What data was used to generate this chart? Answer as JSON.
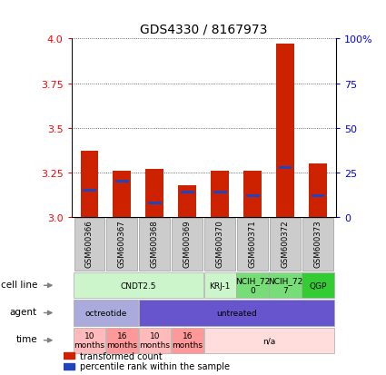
{
  "title": "GDS4330 / 8167973",
  "samples": [
    "GSM600366",
    "GSM600367",
    "GSM600368",
    "GSM600369",
    "GSM600370",
    "GSM600371",
    "GSM600372",
    "GSM600373"
  ],
  "transformed_counts": [
    3.37,
    3.26,
    3.27,
    3.18,
    3.26,
    3.26,
    3.97,
    3.3
  ],
  "percentile_ranks": [
    3.15,
    3.2,
    3.08,
    3.14,
    3.14,
    3.12,
    3.28,
    3.12
  ],
  "bar_bottom": 3.0,
  "ylim": [
    3.0,
    4.0
  ],
  "yticks_left": [
    3.0,
    3.25,
    3.5,
    3.75,
    4.0
  ],
  "yticks_right_vals": [
    0,
    25,
    50,
    75,
    100
  ],
  "yticks_right_labels": [
    "0",
    "25",
    "50",
    "75",
    "100%"
  ],
  "cell_line_groups": [
    {
      "label": "CNDT2.5",
      "start": 0,
      "end": 4,
      "color": "#ccf5cc"
    },
    {
      "label": "KRJ-1",
      "start": 4,
      "end": 5,
      "color": "#ccf5cc"
    },
    {
      "label": "NCIH_72\n0",
      "start": 5,
      "end": 6,
      "color": "#77dd77"
    },
    {
      "label": "NCIH_72\n7",
      "start": 6,
      "end": 7,
      "color": "#77dd77"
    },
    {
      "label": "QGP",
      "start": 7,
      "end": 8,
      "color": "#33cc33"
    }
  ],
  "agent_groups": [
    {
      "label": "octreotide",
      "start": 0,
      "end": 2,
      "color": "#aaaadd"
    },
    {
      "label": "untreated",
      "start": 2,
      "end": 8,
      "color": "#6655cc"
    }
  ],
  "time_groups": [
    {
      "label": "10\nmonths",
      "start": 0,
      "end": 1,
      "color": "#ffbbbb"
    },
    {
      "label": "16\nmonths",
      "start": 1,
      "end": 2,
      "color": "#ff9999"
    },
    {
      "label": "10\nmonths",
      "start": 2,
      "end": 3,
      "color": "#ffbbbb"
    },
    {
      "label": "16\nmonths",
      "start": 3,
      "end": 4,
      "color": "#ff9999"
    },
    {
      "label": "n/a",
      "start": 4,
      "end": 8,
      "color": "#ffdddd"
    }
  ],
  "row_labels": [
    "cell line",
    "agent",
    "time"
  ],
  "bar_color": "#cc2200",
  "percentile_color": "#2244bb",
  "grid_color": "#444444",
  "sample_box_color": "#cccccc",
  "sample_box_edge": "#999999"
}
